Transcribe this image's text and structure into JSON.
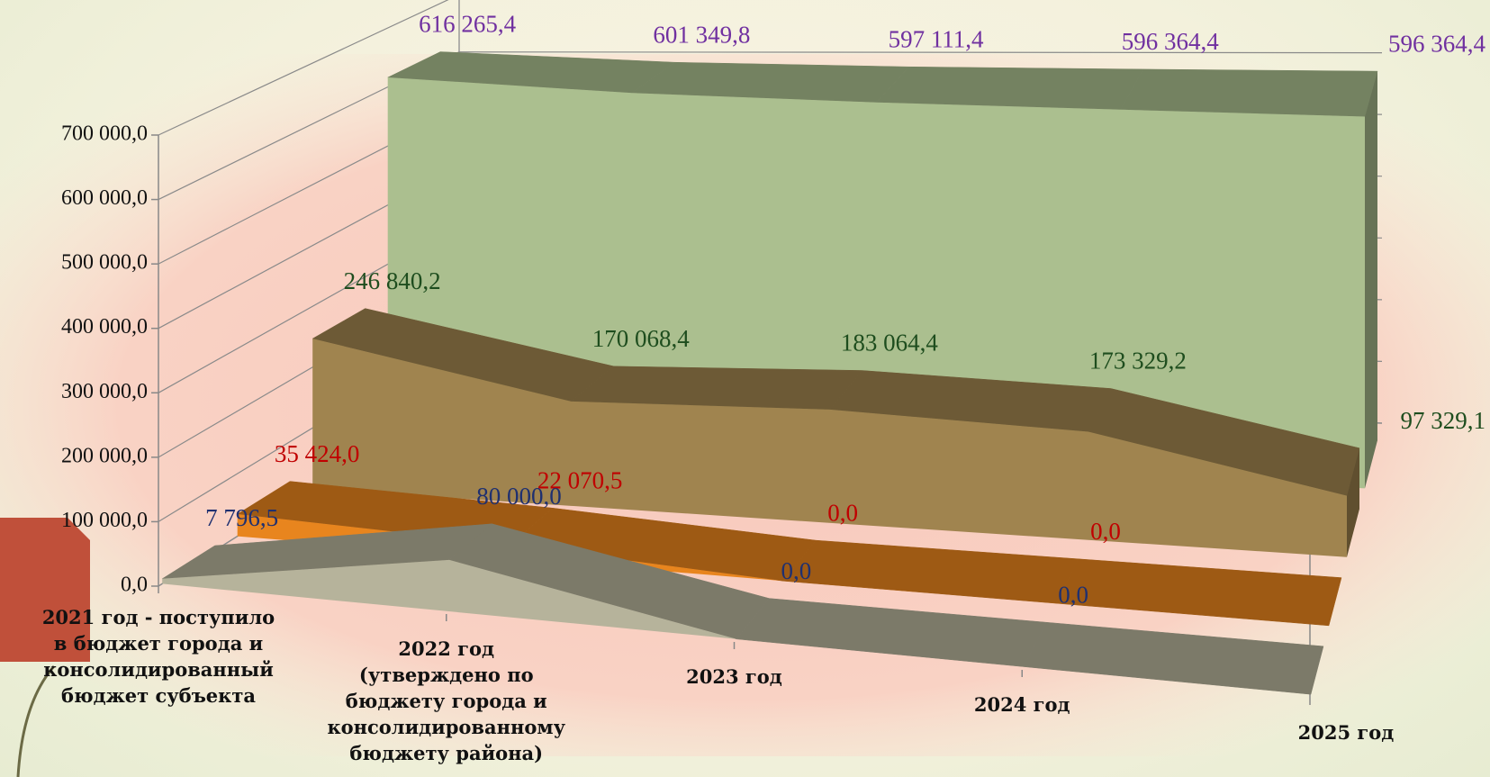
{
  "chart_data": {
    "type": "area3d",
    "categories": [
      "2021 год - поступило в бюджет города и консолидированный бюджет субъекта",
      "2022 год (утверждено по бюджету города и консолидированному бюджету района)",
      "2023 год",
      "2024 год",
      "2025 год"
    ],
    "ylim": [
      0,
      700000
    ],
    "yticks": [
      {
        "value": 0,
        "label": "0,0"
      },
      {
        "value": 100000,
        "label": "100 000,0"
      },
      {
        "value": 200000,
        "label": "200 000,0"
      },
      {
        "value": 300000,
        "label": "300 000,0"
      },
      {
        "value": 400000,
        "label": "400 000,0"
      },
      {
        "value": 500000,
        "label": "500 000,0"
      },
      {
        "value": 600000,
        "label": "600 000,0"
      },
      {
        "value": 700000,
        "label": "700 000,0"
      }
    ],
    "grid": true,
    "series": [
      {
        "color": "#abbf8f",
        "label_color": "#7030a0",
        "values": [
          616265.4,
          601349.8,
          597111.4,
          596364.4,
          596364.4
        ],
        "value_labels": [
          "616 265,4",
          "601 349,8",
          "597 111,4",
          "596 364,4",
          "596 364,4"
        ]
      },
      {
        "color": "#a0844f",
        "label_color": "#1e4d1e",
        "values": [
          246840.2,
          170068.4,
          183064.4,
          173329.2,
          97329.1
        ],
        "value_labels": [
          "246 840,2",
          "170 068,4",
          "183 064,4",
          "173 329,2",
          "97 329,1"
        ]
      },
      {
        "color": "#e8851e",
        "label_color": "#c00000",
        "values": [
          35424.0,
          22070.5,
          0,
          0,
          0
        ],
        "value_labels": [
          "35 424,0",
          "22 070,5",
          "0,0",
          "0,0",
          null
        ]
      },
      {
        "color": "#b6b39b",
        "label_color": "#1f3070",
        "values": [
          7796.5,
          80000.0,
          0,
          0,
          0
        ],
        "value_labels": [
          "7 796,5",
          "80 000,0",
          "0,0",
          "0,0",
          null
        ]
      }
    ]
  }
}
